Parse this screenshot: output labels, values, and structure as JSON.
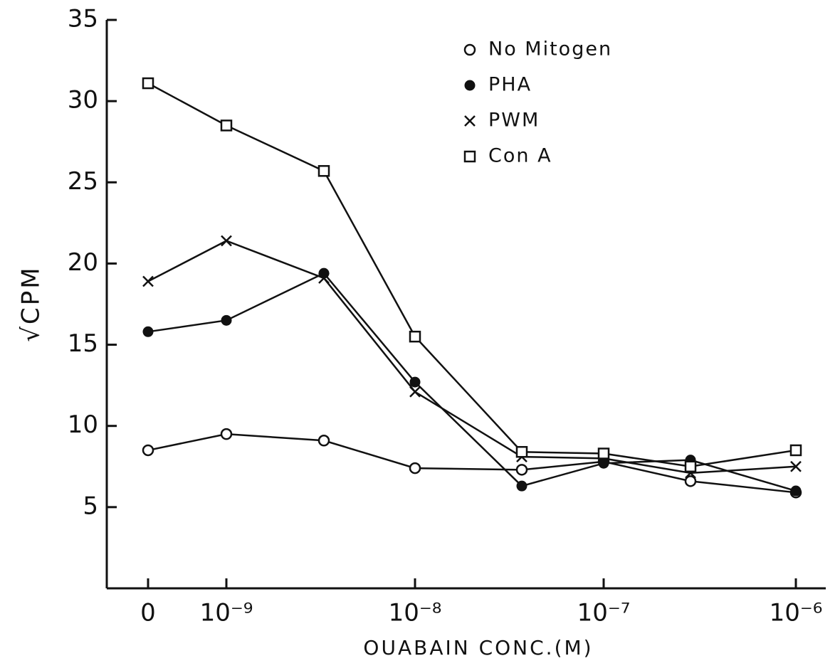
{
  "chart_data": {
    "type": "line",
    "x_label": "OUABAIN CONC.(M)",
    "y_label": "√CPM",
    "categories": [
      "0",
      "10⁻⁹",
      null,
      "10⁻⁸",
      null,
      "10⁻⁷",
      null,
      "10⁻⁶"
    ],
    "ylim": [
      0,
      35
    ],
    "yticks": [
      5,
      10,
      15,
      20,
      25,
      30,
      35
    ],
    "series": [
      {
        "name": "No Mitogen",
        "color": "#111111",
        "marker": "circle-open",
        "values": [
          8.5,
          9.5,
          9.1,
          7.4,
          7.3,
          7.8,
          6.6,
          5.9
        ]
      },
      {
        "name": "PHA",
        "color": "#111111",
        "marker": "circle-filled",
        "values": [
          15.8,
          16.5,
          19.4,
          12.7,
          6.3,
          7.7,
          7.9,
          6.0
        ]
      },
      {
        "name": "PWM",
        "color": "#111111",
        "marker": "x",
        "values": [
          18.9,
          21.4,
          19.1,
          12.1,
          8.1,
          8.0,
          7.1,
          7.5
        ]
      },
      {
        "name": "Con A",
        "color": "#111111",
        "marker": "square-open",
        "values": [
          31.1,
          28.5,
          25.7,
          15.5,
          8.4,
          8.3,
          7.5,
          8.5
        ]
      }
    ]
  }
}
